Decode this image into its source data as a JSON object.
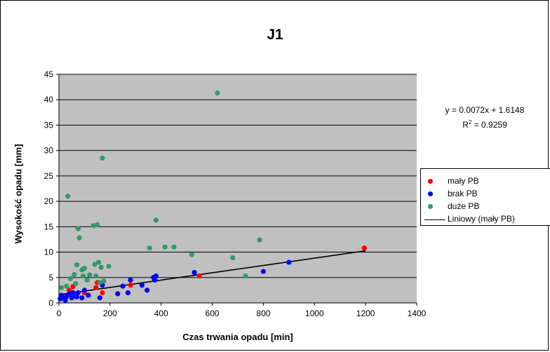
{
  "chart_data": {
    "type": "scatter",
    "title": "J1",
    "xlabel": "Czas trwania opadu [min]",
    "ylabel": "Wysokość opadu [mm]",
    "xlim": [
      0,
      1400
    ],
    "ylim": [
      0,
      45
    ],
    "x_ticks": [
      0,
      200,
      400,
      600,
      800,
      1000,
      1200,
      1400
    ],
    "y_ticks": [
      0,
      5,
      10,
      15,
      20,
      25,
      30,
      35,
      40,
      45
    ],
    "background_color": "#C0C0C0",
    "grid": "horizontal",
    "legend_position": "right",
    "series": [
      {
        "name": "mały PB",
        "color": "#FF0000",
        "x": [
          40,
          55,
          100,
          145,
          150,
          170,
          280,
          550,
          1195
        ],
        "y": [
          2.5,
          3.2,
          2.0,
          3.0,
          4.0,
          2.0,
          3.5,
          5.3,
          10.8
        ]
      },
      {
        "name": "brak PB",
        "color": "#0000FF",
        "x": [
          5,
          10,
          15,
          25,
          30,
          40,
          50,
          55,
          60,
          70,
          75,
          90,
          100,
          115,
          160,
          170,
          230,
          250,
          270,
          280,
          325,
          345,
          370,
          375,
          380,
          530,
          800,
          900
        ],
        "y": [
          0.8,
          1.5,
          1.0,
          0.5,
          1.3,
          1.8,
          1.0,
          2.0,
          1.3,
          1.2,
          2.0,
          1.0,
          2.5,
          1.5,
          1.0,
          3.5,
          1.8,
          3.3,
          2.0,
          4.5,
          3.5,
          2.5,
          5.0,
          4.5,
          5.3,
          6.0,
          6.2,
          8.0
        ]
      },
      {
        "name": "duże PB",
        "color": "#339966",
        "x": [
          10,
          30,
          35,
          45,
          60,
          65,
          70,
          75,
          80,
          90,
          95,
          100,
          110,
          120,
          135,
          140,
          145,
          150,
          155,
          160,
          165,
          170,
          175,
          195,
          355,
          380,
          415,
          450,
          520,
          620,
          680,
          730,
          785
        ],
        "y": [
          3.0,
          3.3,
          21.0,
          4.8,
          5.6,
          3.8,
          7.5,
          14.6,
          12.8,
          6.5,
          5.3,
          6.8,
          4.5,
          5.5,
          15.2,
          7.6,
          5.3,
          15.4,
          8.0,
          4.0,
          7.0,
          28.5,
          4.3,
          7.2,
          10.8,
          16.3,
          11.0,
          11.0,
          9.5,
          41.3,
          8.9,
          5.3,
          12.4
        ]
      }
    ],
    "trendline": {
      "name": "Liniowy (mały PB)",
      "color": "#000000",
      "slope": 0.0072,
      "intercept": 1.6148,
      "x_range": [
        0,
        1200
      ],
      "equation": "y = 0.0072x + 1.6148",
      "r2_prefix": "R",
      "r2_sup": "2",
      "r2_suffix": " = 0.9259"
    }
  },
  "legend": {
    "items": [
      {
        "label": "mały PB",
        "color": "#FF0000",
        "kind": "marker"
      },
      {
        "label": "brak PB",
        "color": "#0000FF",
        "kind": "marker"
      },
      {
        "label": "duże PB",
        "color": "#339966",
        "kind": "marker"
      },
      {
        "label": "Liniowy (mały PB)",
        "color": "#000000",
        "kind": "line"
      }
    ]
  }
}
